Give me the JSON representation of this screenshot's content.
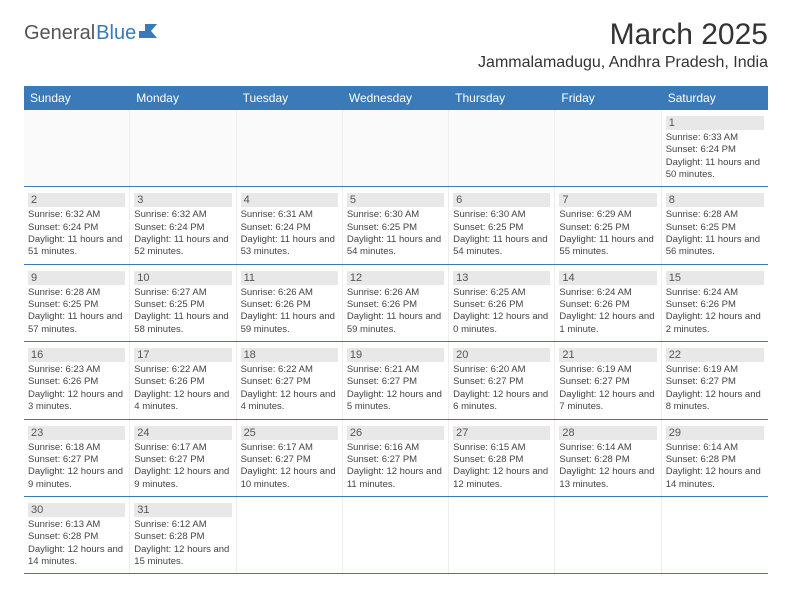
{
  "logo": {
    "text1": "General",
    "text2": "Blue"
  },
  "title": "March 2025",
  "location": "Jammalamadugu, Andhra Pradesh, India",
  "colors": {
    "header_bg": "#3a7ab8",
    "header_text": "#ffffff",
    "text": "#333333",
    "daynum_bg": "#e8e8e8",
    "border": "#3a7ab8"
  },
  "day_headers": [
    "Sunday",
    "Monday",
    "Tuesday",
    "Wednesday",
    "Thursday",
    "Friday",
    "Saturday"
  ],
  "weeks": [
    [
      null,
      null,
      null,
      null,
      null,
      null,
      {
        "n": "1",
        "sr": "Sunrise: 6:33 AM",
        "ss": "Sunset: 6:24 PM",
        "dl": "Daylight: 11 hours and 50 minutes."
      }
    ],
    [
      {
        "n": "2",
        "sr": "Sunrise: 6:32 AM",
        "ss": "Sunset: 6:24 PM",
        "dl": "Daylight: 11 hours and 51 minutes."
      },
      {
        "n": "3",
        "sr": "Sunrise: 6:32 AM",
        "ss": "Sunset: 6:24 PM",
        "dl": "Daylight: 11 hours and 52 minutes."
      },
      {
        "n": "4",
        "sr": "Sunrise: 6:31 AM",
        "ss": "Sunset: 6:24 PM",
        "dl": "Daylight: 11 hours and 53 minutes."
      },
      {
        "n": "5",
        "sr": "Sunrise: 6:30 AM",
        "ss": "Sunset: 6:25 PM",
        "dl": "Daylight: 11 hours and 54 minutes."
      },
      {
        "n": "6",
        "sr": "Sunrise: 6:30 AM",
        "ss": "Sunset: 6:25 PM",
        "dl": "Daylight: 11 hours and 54 minutes."
      },
      {
        "n": "7",
        "sr": "Sunrise: 6:29 AM",
        "ss": "Sunset: 6:25 PM",
        "dl": "Daylight: 11 hours and 55 minutes."
      },
      {
        "n": "8",
        "sr": "Sunrise: 6:28 AM",
        "ss": "Sunset: 6:25 PM",
        "dl": "Daylight: 11 hours and 56 minutes."
      }
    ],
    [
      {
        "n": "9",
        "sr": "Sunrise: 6:28 AM",
        "ss": "Sunset: 6:25 PM",
        "dl": "Daylight: 11 hours and 57 minutes."
      },
      {
        "n": "10",
        "sr": "Sunrise: 6:27 AM",
        "ss": "Sunset: 6:25 PM",
        "dl": "Daylight: 11 hours and 58 minutes."
      },
      {
        "n": "11",
        "sr": "Sunrise: 6:26 AM",
        "ss": "Sunset: 6:26 PM",
        "dl": "Daylight: 11 hours and 59 minutes."
      },
      {
        "n": "12",
        "sr": "Sunrise: 6:26 AM",
        "ss": "Sunset: 6:26 PM",
        "dl": "Daylight: 11 hours and 59 minutes."
      },
      {
        "n": "13",
        "sr": "Sunrise: 6:25 AM",
        "ss": "Sunset: 6:26 PM",
        "dl": "Daylight: 12 hours and 0 minutes."
      },
      {
        "n": "14",
        "sr": "Sunrise: 6:24 AM",
        "ss": "Sunset: 6:26 PM",
        "dl": "Daylight: 12 hours and 1 minute."
      },
      {
        "n": "15",
        "sr": "Sunrise: 6:24 AM",
        "ss": "Sunset: 6:26 PM",
        "dl": "Daylight: 12 hours and 2 minutes."
      }
    ],
    [
      {
        "n": "16",
        "sr": "Sunrise: 6:23 AM",
        "ss": "Sunset: 6:26 PM",
        "dl": "Daylight: 12 hours and 3 minutes."
      },
      {
        "n": "17",
        "sr": "Sunrise: 6:22 AM",
        "ss": "Sunset: 6:26 PM",
        "dl": "Daylight: 12 hours and 4 minutes."
      },
      {
        "n": "18",
        "sr": "Sunrise: 6:22 AM",
        "ss": "Sunset: 6:27 PM",
        "dl": "Daylight: 12 hours and 4 minutes."
      },
      {
        "n": "19",
        "sr": "Sunrise: 6:21 AM",
        "ss": "Sunset: 6:27 PM",
        "dl": "Daylight: 12 hours and 5 minutes."
      },
      {
        "n": "20",
        "sr": "Sunrise: 6:20 AM",
        "ss": "Sunset: 6:27 PM",
        "dl": "Daylight: 12 hours and 6 minutes."
      },
      {
        "n": "21",
        "sr": "Sunrise: 6:19 AM",
        "ss": "Sunset: 6:27 PM",
        "dl": "Daylight: 12 hours and 7 minutes."
      },
      {
        "n": "22",
        "sr": "Sunrise: 6:19 AM",
        "ss": "Sunset: 6:27 PM",
        "dl": "Daylight: 12 hours and 8 minutes."
      }
    ],
    [
      {
        "n": "23",
        "sr": "Sunrise: 6:18 AM",
        "ss": "Sunset: 6:27 PM",
        "dl": "Daylight: 12 hours and 9 minutes."
      },
      {
        "n": "24",
        "sr": "Sunrise: 6:17 AM",
        "ss": "Sunset: 6:27 PM",
        "dl": "Daylight: 12 hours and 9 minutes."
      },
      {
        "n": "25",
        "sr": "Sunrise: 6:17 AM",
        "ss": "Sunset: 6:27 PM",
        "dl": "Daylight: 12 hours and 10 minutes."
      },
      {
        "n": "26",
        "sr": "Sunrise: 6:16 AM",
        "ss": "Sunset: 6:27 PM",
        "dl": "Daylight: 12 hours and 11 minutes."
      },
      {
        "n": "27",
        "sr": "Sunrise: 6:15 AM",
        "ss": "Sunset: 6:28 PM",
        "dl": "Daylight: 12 hours and 12 minutes."
      },
      {
        "n": "28",
        "sr": "Sunrise: 6:14 AM",
        "ss": "Sunset: 6:28 PM",
        "dl": "Daylight: 12 hours and 13 minutes."
      },
      {
        "n": "29",
        "sr": "Sunrise: 6:14 AM",
        "ss": "Sunset: 6:28 PM",
        "dl": "Daylight: 12 hours and 14 minutes."
      }
    ],
    [
      {
        "n": "30",
        "sr": "Sunrise: 6:13 AM",
        "ss": "Sunset: 6:28 PM",
        "dl": "Daylight: 12 hours and 14 minutes."
      },
      {
        "n": "31",
        "sr": "Sunrise: 6:12 AM",
        "ss": "Sunset: 6:28 PM",
        "dl": "Daylight: 12 hours and 15 minutes."
      },
      null,
      null,
      null,
      null,
      null
    ]
  ]
}
